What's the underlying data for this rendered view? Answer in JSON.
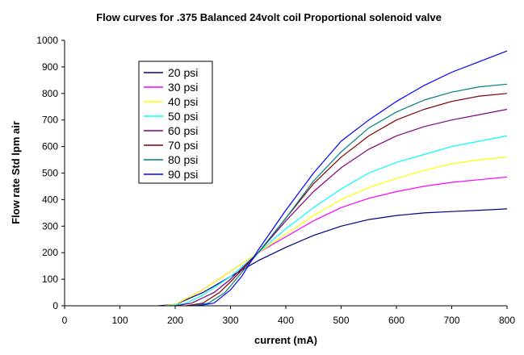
{
  "chart_data": {
    "type": "line",
    "title": "Flow curves for .375 Balanced 24volt coil Proportional solenoid valve",
    "xlabel": "current (mA)",
    "ylabel": "Flow rate Std lpm air",
    "xlim": [
      0,
      800
    ],
    "ylim": [
      0,
      1000
    ],
    "x_ticks": [
      "0",
      "100",
      "200",
      "300",
      "400",
      "500",
      "600",
      "700",
      "800"
    ],
    "y_ticks": [
      "0",
      "100",
      "200",
      "300",
      "400",
      "500",
      "600",
      "700",
      "800",
      "900",
      "1000"
    ],
    "grid": false,
    "legend_position": "top-left",
    "series": [
      {
        "name": "20 psi",
        "color": "#000080",
        "x": [
          170,
          200,
          250,
          300,
          350,
          400,
          450,
          500,
          550,
          600,
          650,
          700,
          750,
          800
        ],
        "y": [
          0,
          5,
          50,
          110,
          170,
          220,
          265,
          300,
          325,
          340,
          350,
          355,
          360,
          365
        ]
      },
      {
        "name": "30 psi",
        "color": "#ff00ff",
        "x": [
          180,
          200,
          250,
          300,
          350,
          400,
          450,
          500,
          550,
          600,
          650,
          700,
          750,
          800
        ],
        "y": [
          0,
          5,
          60,
          130,
          200,
          260,
          320,
          370,
          405,
          430,
          450,
          465,
          475,
          485
        ]
      },
      {
        "name": "40 psi",
        "color": "#ffff00",
        "x": [
          180,
          200,
          250,
          300,
          350,
          400,
          450,
          500,
          550,
          600,
          650,
          700,
          750,
          800
        ],
        "y": [
          0,
          5,
          60,
          130,
          200,
          270,
          340,
          400,
          445,
          480,
          510,
          535,
          550,
          560
        ]
      },
      {
        "name": "50 psi",
        "color": "#00ffff",
        "x": [
          190,
          220,
          250,
          300,
          350,
          400,
          450,
          500,
          550,
          600,
          650,
          700,
          750,
          800
        ],
        "y": [
          0,
          10,
          40,
          110,
          200,
          290,
          370,
          440,
          500,
          540,
          570,
          600,
          620,
          640
        ]
      },
      {
        "name": "60 psi",
        "color": "#800080",
        "x": [
          200,
          230,
          270,
          300,
          350,
          400,
          450,
          500,
          550,
          600,
          650,
          700,
          750,
          800
        ],
        "y": [
          0,
          10,
          50,
          100,
          200,
          320,
          430,
          520,
          590,
          640,
          675,
          700,
          720,
          740
        ]
      },
      {
        "name": "70 psi",
        "color": "#800000",
        "x": [
          220,
          250,
          280,
          300,
          350,
          400,
          450,
          500,
          550,
          600,
          650,
          700,
          750,
          800
        ],
        "y": [
          0,
          10,
          50,
          90,
          200,
          330,
          460,
          560,
          640,
          700,
          740,
          770,
          790,
          800
        ]
      },
      {
        "name": "80 psi",
        "color": "#008080",
        "x": [
          230,
          260,
          290,
          310,
          350,
          400,
          450,
          500,
          550,
          600,
          650,
          700,
          750,
          800
        ],
        "y": [
          0,
          10,
          50,
          100,
          200,
          330,
          470,
          580,
          670,
          730,
          775,
          805,
          825,
          835
        ]
      },
      {
        "name": "90 psi",
        "color": "#0000ff",
        "x": [
          240,
          270,
          300,
          320,
          350,
          400,
          450,
          500,
          550,
          600,
          650,
          700,
          750,
          800
        ],
        "y": [
          0,
          10,
          60,
          110,
          210,
          360,
          500,
          620,
          700,
          770,
          830,
          880,
          920,
          960
        ]
      }
    ]
  }
}
